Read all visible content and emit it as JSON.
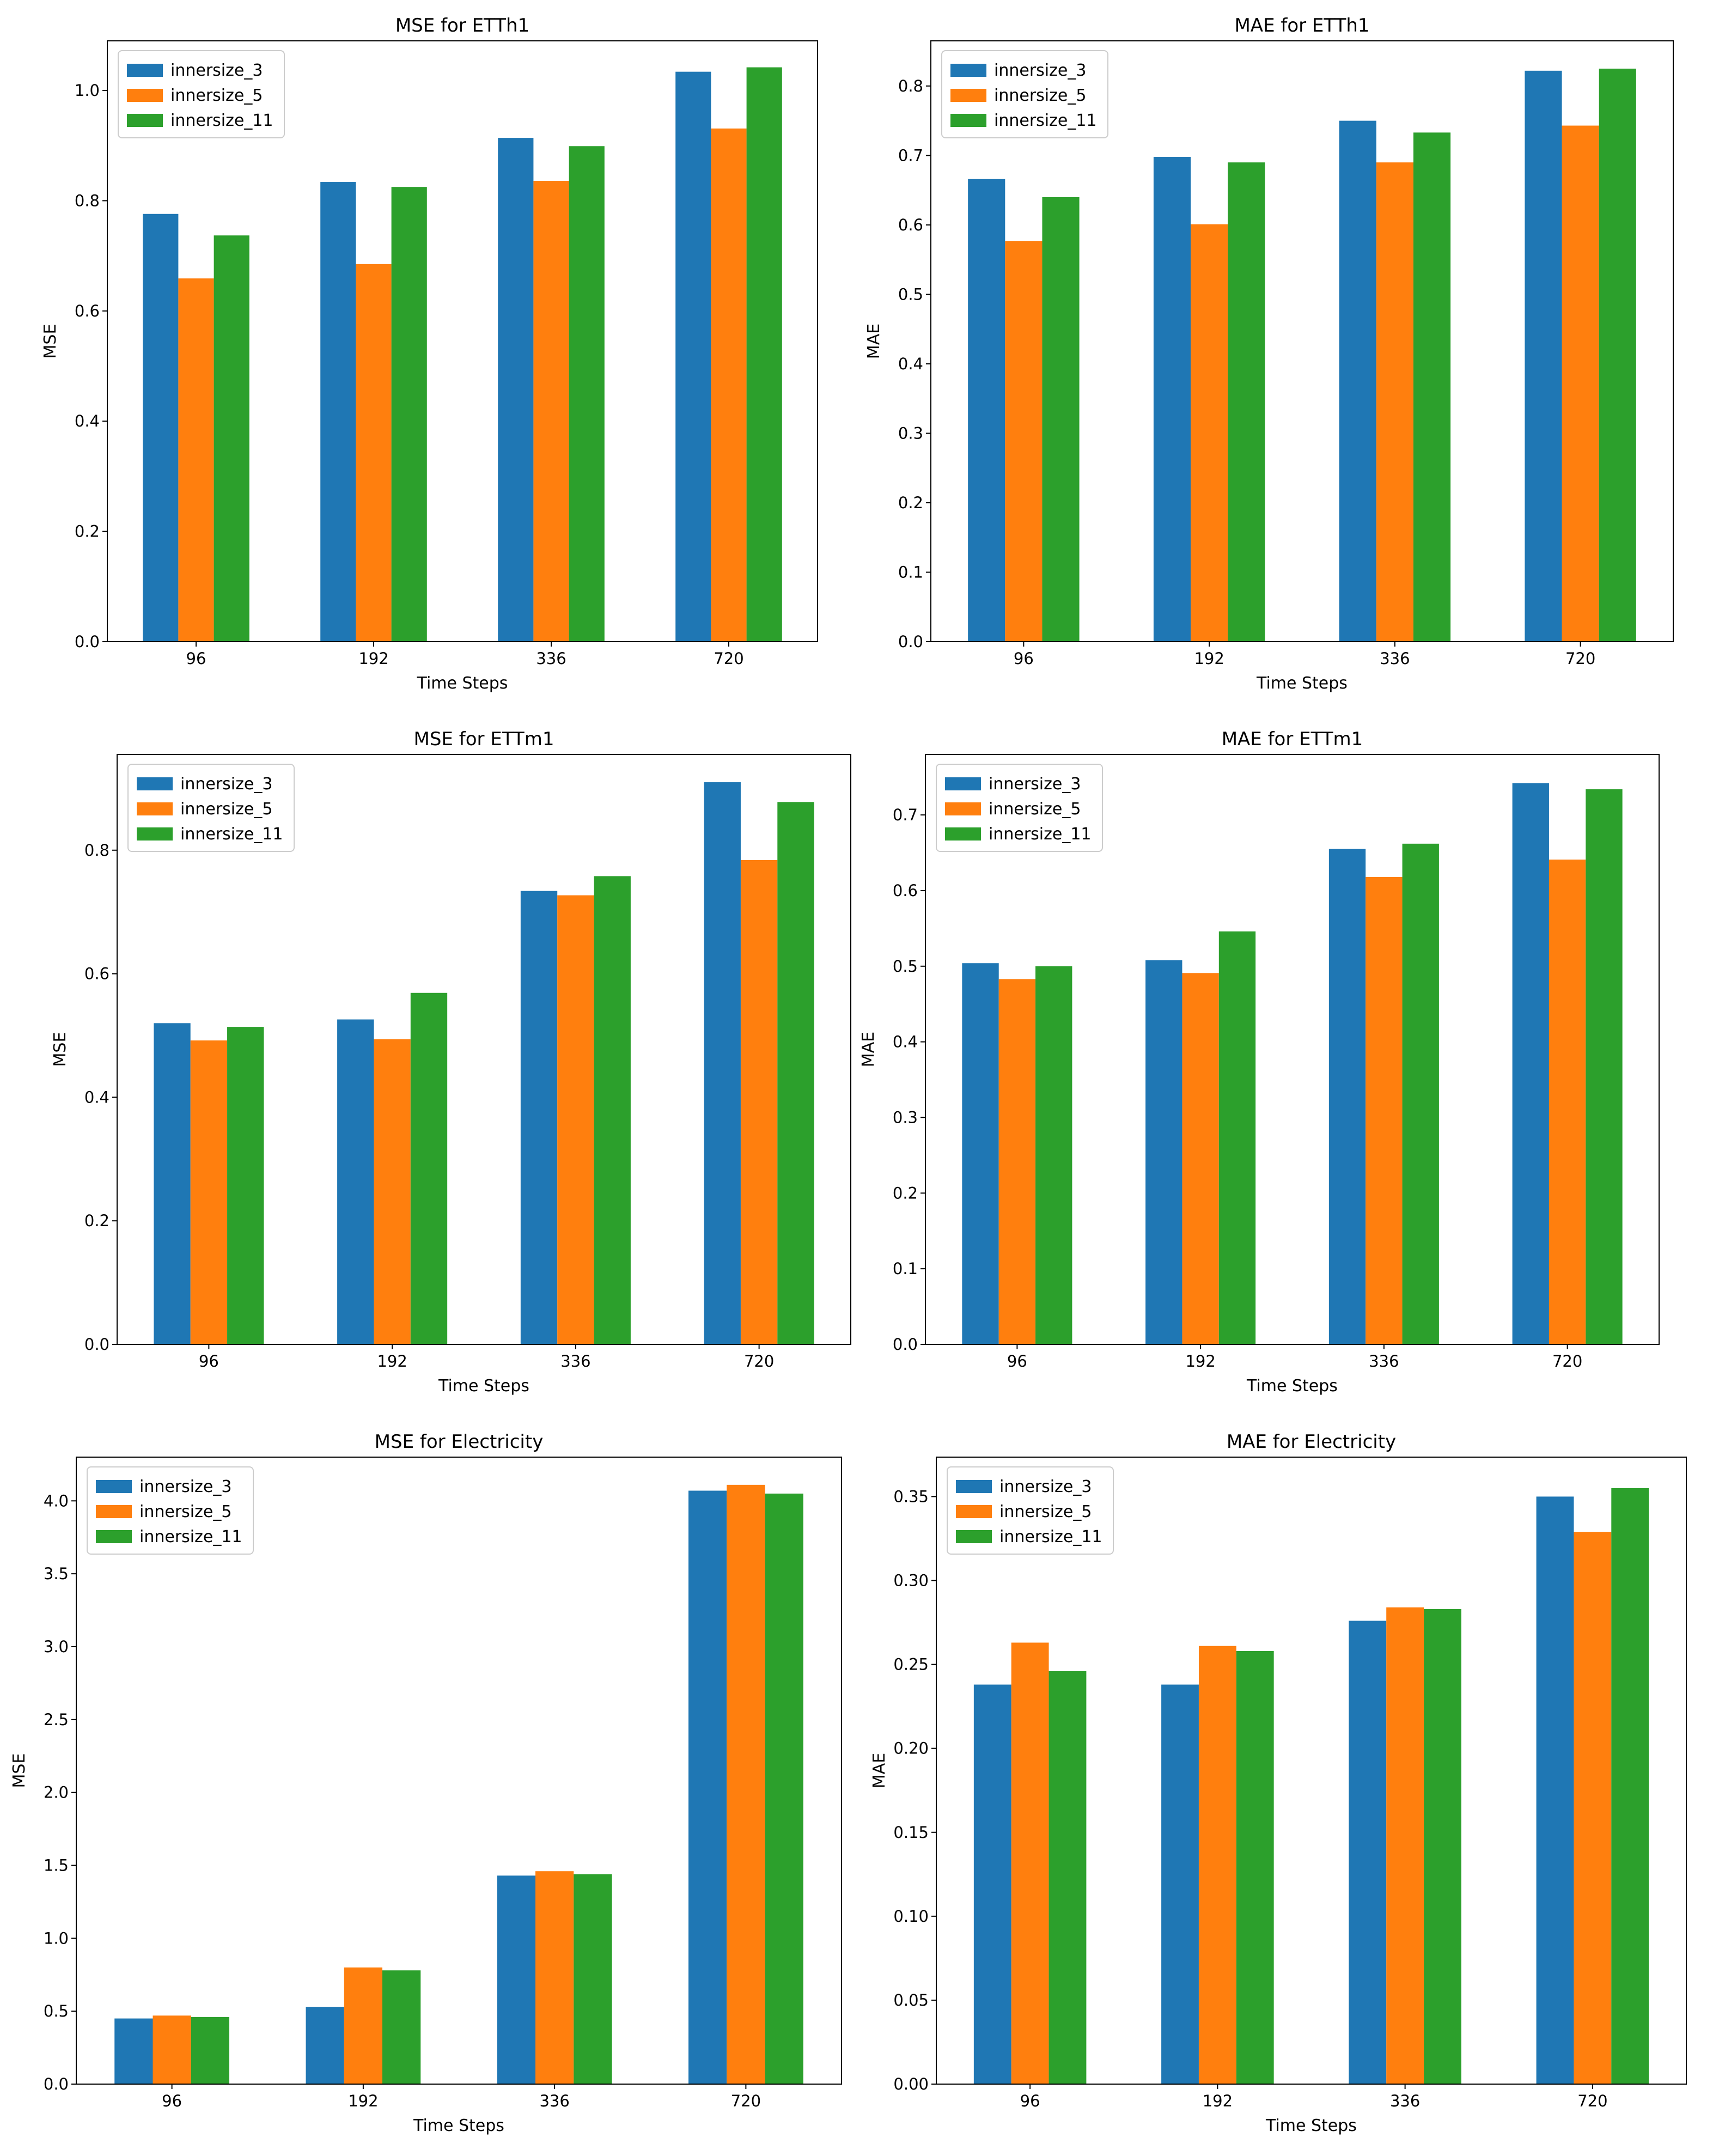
{
  "colors": {
    "innersize_3": "#1f77b4",
    "innersize_5": "#ff7f0e",
    "innersize_11": "#2ca02c"
  },
  "chart_data": [
    {
      "type": "bar",
      "title": "MSE for ETTh1",
      "xlabel": "Time Steps",
      "ylabel": "MSE",
      "categories": [
        "96",
        "192",
        "336",
        "720"
      ],
      "ylim": [
        0,
        1.09
      ],
      "yticks": [
        "0.0",
        "0.2",
        "0.4",
        "0.6",
        "0.8",
        "1.0"
      ],
      "ytick_values": [
        0.0,
        0.2,
        0.4,
        0.6,
        0.8,
        1.0
      ],
      "legend_position": "top-left",
      "series": [
        {
          "name": "innersize_3",
          "values": [
            0.776,
            0.834,
            0.914,
            1.034
          ]
        },
        {
          "name": "innersize_5",
          "values": [
            0.659,
            0.685,
            0.836,
            0.931
          ]
        },
        {
          "name": "innersize_11",
          "values": [
            0.737,
            0.825,
            0.899,
            1.042
          ]
        }
      ]
    },
    {
      "type": "bar",
      "title": "MAE for ETTh1",
      "xlabel": "Time Steps",
      "ylabel": "MAE",
      "categories": [
        "96",
        "192",
        "336",
        "720"
      ],
      "ylim": [
        0,
        0.865
      ],
      "yticks": [
        "0.0",
        "0.1",
        "0.2",
        "0.3",
        "0.4",
        "0.5",
        "0.6",
        "0.7",
        "0.8"
      ],
      "ytick_values": [
        0.0,
        0.1,
        0.2,
        0.3,
        0.4,
        0.5,
        0.6,
        0.7,
        0.8
      ],
      "legend_position": "top-left",
      "series": [
        {
          "name": "innersize_3",
          "values": [
            0.666,
            0.698,
            0.75,
            0.822
          ]
        },
        {
          "name": "innersize_5",
          "values": [
            0.577,
            0.601,
            0.69,
            0.743
          ]
        },
        {
          "name": "innersize_11",
          "values": [
            0.64,
            0.69,
            0.733,
            0.825
          ]
        }
      ]
    },
    {
      "type": "bar",
      "title": "MSE for ETTm1",
      "xlabel": "Time Steps",
      "ylabel": "MSE",
      "categories": [
        "96",
        "192",
        "336",
        "720"
      ],
      "ylim": [
        0,
        0.955
      ],
      "yticks": [
        "0.0",
        "0.2",
        "0.4",
        "0.6",
        "0.8"
      ],
      "ytick_values": [
        0.0,
        0.2,
        0.4,
        0.6,
        0.8
      ],
      "legend_position": "top-left",
      "series": [
        {
          "name": "innersize_3",
          "values": [
            0.52,
            0.526,
            0.734,
            0.91
          ]
        },
        {
          "name": "innersize_5",
          "values": [
            0.492,
            0.494,
            0.727,
            0.784
          ]
        },
        {
          "name": "innersize_11",
          "values": [
            0.514,
            0.569,
            0.758,
            0.878
          ]
        }
      ]
    },
    {
      "type": "bar",
      "title": "MAE for ETTm1",
      "xlabel": "Time Steps",
      "ylabel": "MAE",
      "categories": [
        "96",
        "192",
        "336",
        "720"
      ],
      "ylim": [
        0,
        0.78
      ],
      "yticks": [
        "0.0",
        "0.1",
        "0.2",
        "0.3",
        "0.4",
        "0.5",
        "0.6",
        "0.7"
      ],
      "ytick_values": [
        0.0,
        0.1,
        0.2,
        0.3,
        0.4,
        0.5,
        0.6,
        0.7
      ],
      "legend_position": "top-left",
      "series": [
        {
          "name": "innersize_3",
          "values": [
            0.504,
            0.508,
            0.655,
            0.742
          ]
        },
        {
          "name": "innersize_5",
          "values": [
            0.483,
            0.491,
            0.618,
            0.641
          ]
        },
        {
          "name": "innersize_11",
          "values": [
            0.5,
            0.546,
            0.662,
            0.734
          ]
        }
      ]
    },
    {
      "type": "bar",
      "title": "MSE for Electricity",
      "xlabel": "Time Steps",
      "ylabel": "MSE",
      "categories": [
        "96",
        "192",
        "336",
        "720"
      ],
      "ylim": [
        0,
        4.3
      ],
      "yticks": [
        "0.0",
        "0.5",
        "1.0",
        "1.5",
        "2.0",
        "2.5",
        "3.0",
        "3.5",
        "4.0"
      ],
      "ytick_values": [
        0.0,
        0.5,
        1.0,
        1.5,
        2.0,
        2.5,
        3.0,
        3.5,
        4.0
      ],
      "legend_position": "top-left",
      "series": [
        {
          "name": "innersize_3",
          "values": [
            0.45,
            0.53,
            1.43,
            4.07
          ]
        },
        {
          "name": "innersize_5",
          "values": [
            0.47,
            0.8,
            1.46,
            4.11
          ]
        },
        {
          "name": "innersize_11",
          "values": [
            0.46,
            0.78,
            1.44,
            4.05
          ]
        }
      ]
    },
    {
      "type": "bar",
      "title": "MAE for Electricity",
      "xlabel": "Time Steps",
      "ylabel": "MAE",
      "categories": [
        "96",
        "192",
        "336",
        "720"
      ],
      "ylim": [
        0,
        0.3735
      ],
      "yticks": [
        "0.00",
        "0.05",
        "0.10",
        "0.15",
        "0.20",
        "0.25",
        "0.30",
        "0.35"
      ],
      "ytick_values": [
        0.0,
        0.05,
        0.1,
        0.15,
        0.2,
        0.25,
        0.3,
        0.35
      ],
      "legend_position": "top-left",
      "series": [
        {
          "name": "innersize_3",
          "values": [
            0.238,
            0.238,
            0.276,
            0.35
          ]
        },
        {
          "name": "innersize_5",
          "values": [
            0.263,
            0.261,
            0.284,
            0.329
          ]
        },
        {
          "name": "innersize_11",
          "values": [
            0.246,
            0.258,
            0.283,
            0.355
          ]
        }
      ]
    }
  ]
}
